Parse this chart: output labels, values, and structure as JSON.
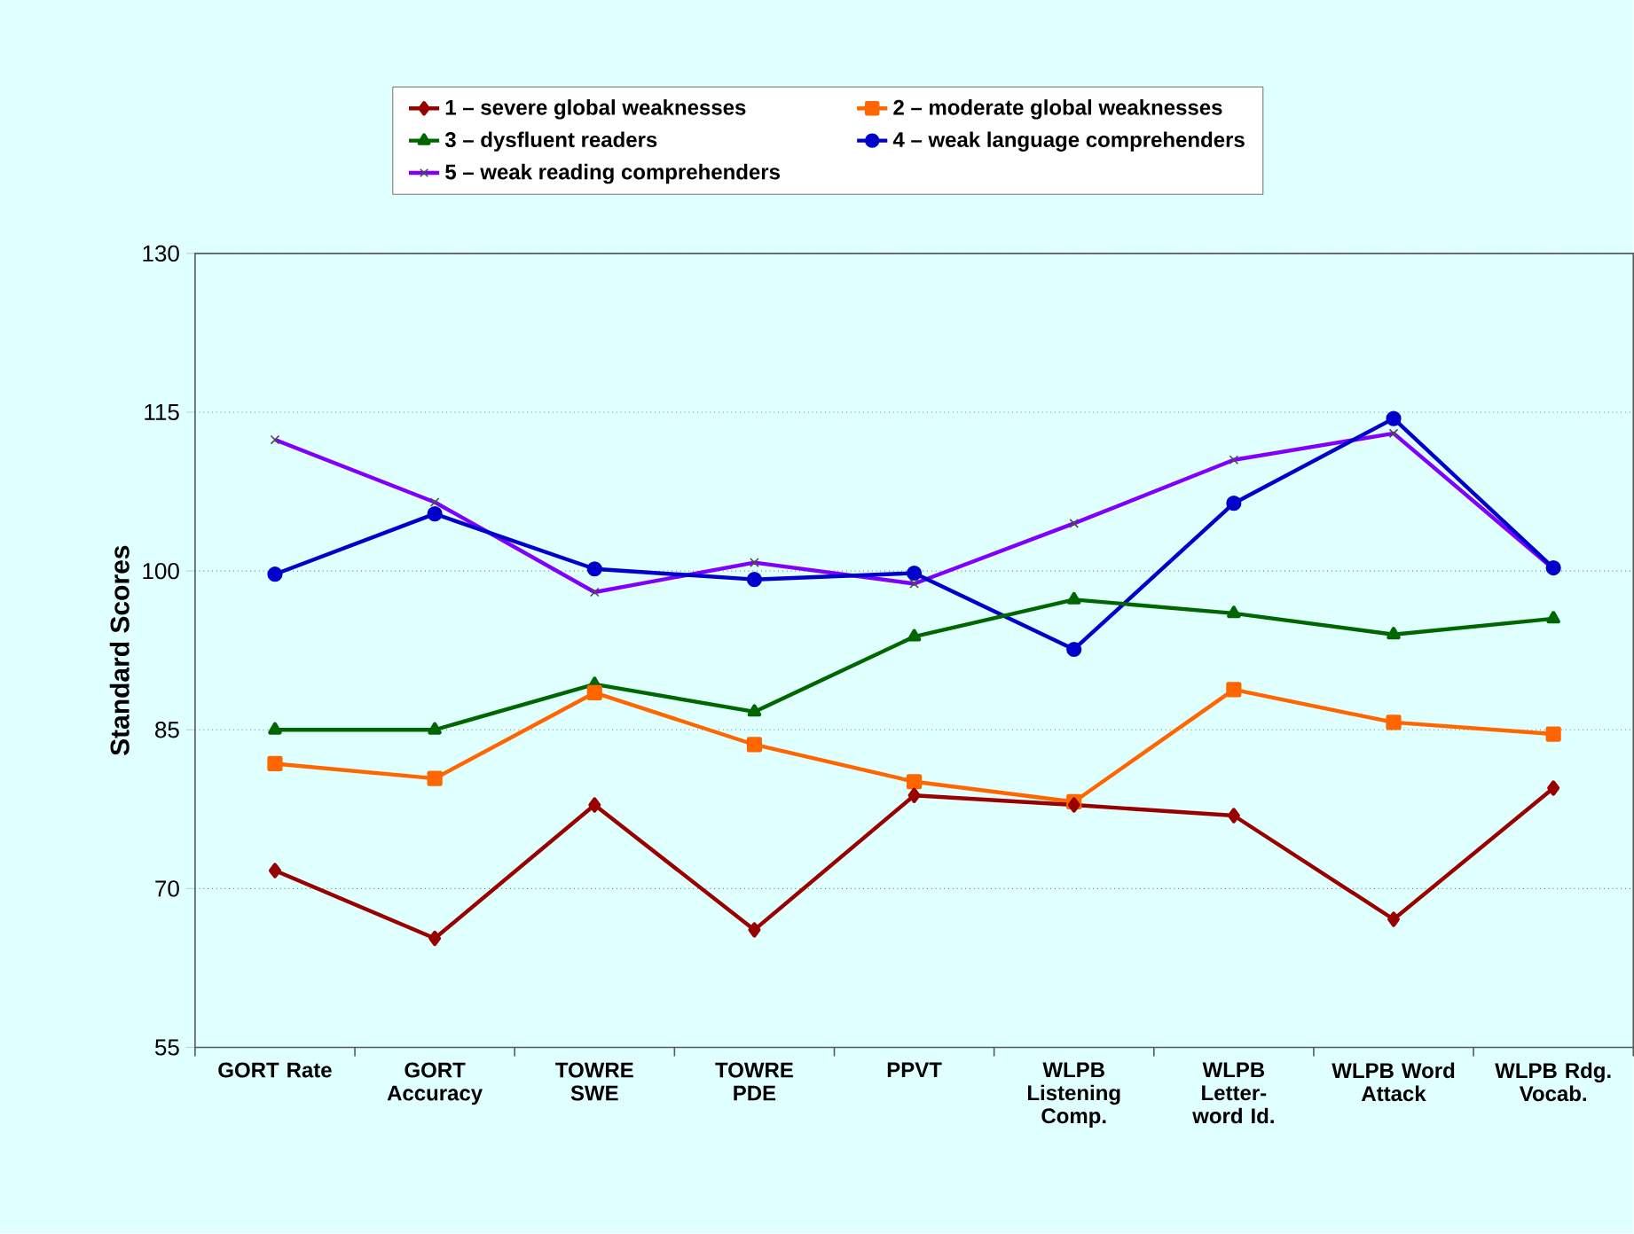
{
  "chart_data": {
    "type": "line",
    "categories": [
      "GORT Rate",
      "GORT Accuracy",
      "TOWRE SWE",
      "TOWRE PDE",
      "PPVT",
      "WLPB Listening Comp.",
      "WLPB Letter-word Id.",
      "WLPB Word Attack",
      "WLPB Rdg. Vocab."
    ],
    "ylabel": "Standard Scores",
    "ylim": [
      55,
      130
    ],
    "yticks": [
      55,
      70,
      85,
      100,
      115,
      130
    ],
    "grid": "y",
    "legend": "top",
    "line_style": "solid",
    "series": [
      {
        "name": "1 – severe global weaknesses",
        "color": "#990000",
        "marker": "diamond",
        "values": [
          71.7,
          65.3,
          77.9,
          66.1,
          78.8,
          77.9,
          76.9,
          67.1,
          79.5
        ]
      },
      {
        "name": "2 – moderate global weaknesses",
        "color": "#ff6600",
        "marker": "square",
        "values": [
          81.8,
          80.4,
          88.5,
          83.6,
          80.1,
          78.2,
          88.8,
          85.7,
          84.6
        ]
      },
      {
        "name": "3 – dysfluent readers",
        "color": "#006600",
        "marker": "triangle",
        "values": [
          85,
          85,
          89.3,
          86.7,
          93.8,
          97.3,
          96.0,
          94.0,
          95.5
        ]
      },
      {
        "name": "4 – weak language comprehenders",
        "color": "#0000cc",
        "marker": "circle",
        "values": [
          99.7,
          105.4,
          100.2,
          99.2,
          99.8,
          92.6,
          106.4,
          114.4,
          100.3
        ]
      },
      {
        "name": "5 – weak reading comprehenders",
        "color": "#8000ff",
        "marker": "cross",
        "values": [
          112.4,
          106.5,
          98.0,
          100.8,
          98.8,
          104.5,
          110.5,
          113.0,
          100.2
        ]
      }
    ]
  }
}
